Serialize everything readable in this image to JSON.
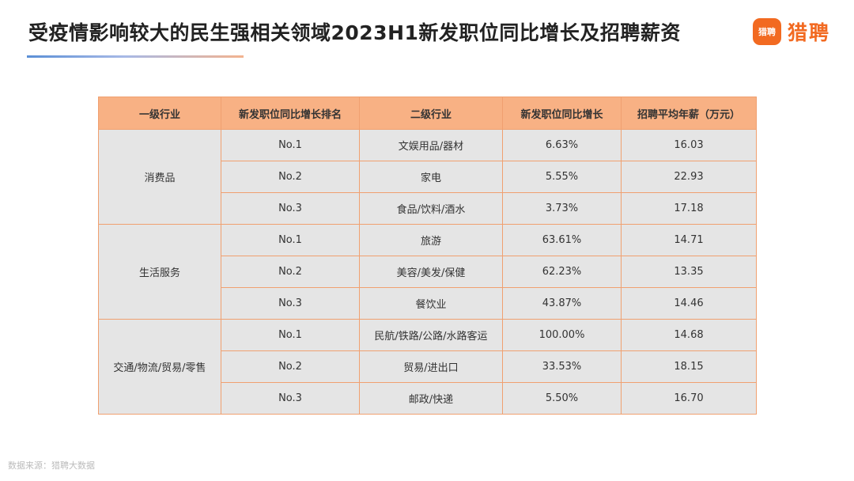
{
  "title": "受疫情影响较大的民生强相关领域2023H1新发职位同比增长及招聘薪资",
  "brand": {
    "badge": "猎聘",
    "name": "猎聘",
    "color": "#f26a21"
  },
  "footer": "数据来源：猎聘大数据",
  "chart_data": {
    "type": "table",
    "columns": [
      "一级行业",
      "新发职位同比增长排名",
      "二级行业",
      "新发职位同比增长",
      "招聘平均年薪（万元）"
    ],
    "groups": [
      {
        "name": "消费品",
        "rows": [
          {
            "rank": "No.1",
            "sub": "文娱用品/器材",
            "growth": "6.63%",
            "salary": "16.03"
          },
          {
            "rank": "No.2",
            "sub": "家电",
            "growth": "5.55%",
            "salary": "22.93"
          },
          {
            "rank": "No.3",
            "sub": "食品/饮料/酒水",
            "growth": "3.73%",
            "salary": "17.18"
          }
        ]
      },
      {
        "name": "生活服务",
        "rows": [
          {
            "rank": "No.1",
            "sub": "旅游",
            "growth": "63.61%",
            "salary": "14.71"
          },
          {
            "rank": "No.2",
            "sub": "美容/美发/保健",
            "growth": "62.23%",
            "salary": "13.35"
          },
          {
            "rank": "No.3",
            "sub": "餐饮业",
            "growth": "43.87%",
            "salary": "14.46"
          }
        ]
      },
      {
        "name": "交通/物流/贸易/零售",
        "rows": [
          {
            "rank": "No.1",
            "sub": "民航/铁路/公路/水路客运",
            "growth": "100.00%",
            "salary": "14.68"
          },
          {
            "rank": "No.2",
            "sub": "贸易/进出口",
            "growth": "33.53%",
            "salary": "18.15"
          },
          {
            "rank": "No.3",
            "sub": "邮政/快递",
            "growth": "5.50%",
            "salary": "16.70"
          }
        ]
      }
    ]
  }
}
